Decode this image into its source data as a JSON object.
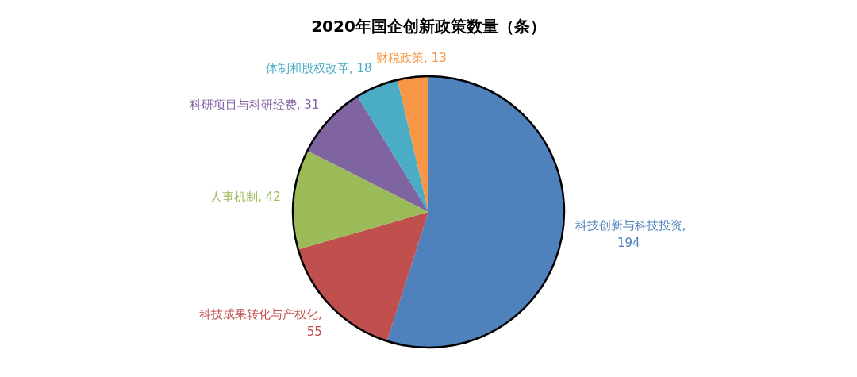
{
  "chart_data": {
    "type": "pie",
    "title": "2020年国企创新政策数量（条）",
    "categories": [
      "科技创新与科技投资",
      "科技成果转化与产权化",
      "人事机制",
      "科研项目与科研经费",
      "体制和股权改革",
      "财税政策"
    ],
    "values": [
      194,
      55,
      42,
      31,
      18,
      13
    ],
    "colors": [
      "#4f81bd",
      "#c0504d",
      "#9bbb59",
      "#8064a2",
      "#4bacc6",
      "#f79646"
    ],
    "value_labels": [
      ", 194",
      ", 55",
      ", 42",
      ", 31",
      ", 18",
      ", 13"
    ],
    "legend": false
  }
}
